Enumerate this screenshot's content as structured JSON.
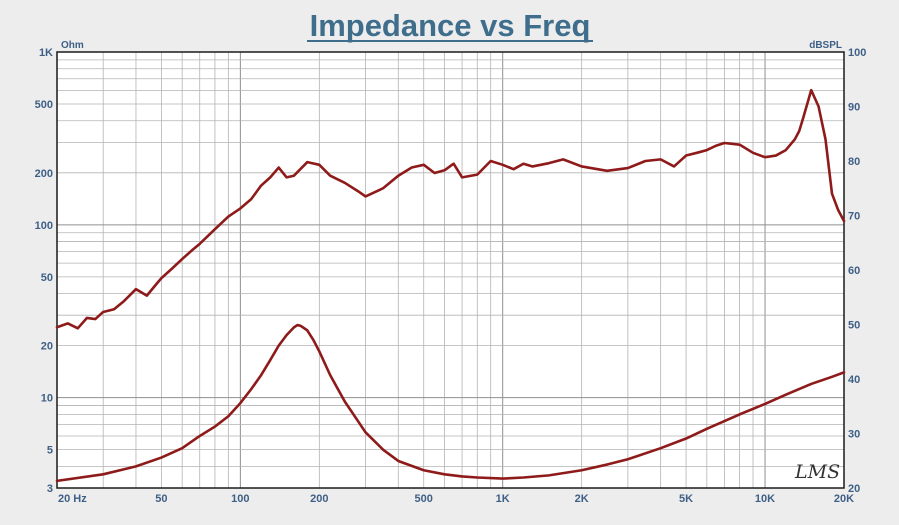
{
  "chart_data": {
    "type": "line",
    "title": "Impedance vs Freq",
    "x_scale": "log",
    "xlim": [
      20,
      20000
    ],
    "x_ticks": [
      {
        "v": 20,
        "label": "20  Hz"
      },
      {
        "v": 50,
        "label": "50"
      },
      {
        "v": 100,
        "label": "100"
      },
      {
        "v": 200,
        "label": "200"
      },
      {
        "v": 500,
        "label": "500"
      },
      {
        "v": 1000,
        "label": "1K"
      },
      {
        "v": 2000,
        "label": "2K"
      },
      {
        "v": 5000,
        "label": "5K"
      },
      {
        "v": 10000,
        "label": "10K"
      },
      {
        "v": 20000,
        "label": "20K"
      }
    ],
    "y_left": {
      "unit": "Ohm",
      "scale": "log",
      "range": [
        3,
        1000
      ],
      "ticks": [
        {
          "v": 1000,
          "label": "1K"
        },
        {
          "v": 500,
          "label": "500"
        },
        {
          "v": 200,
          "label": "200"
        },
        {
          "v": 100,
          "label": "100"
        },
        {
          "v": 50,
          "label": "50"
        },
        {
          "v": 20,
          "label": "20"
        },
        {
          "v": 10,
          "label": "10"
        },
        {
          "v": 5,
          "label": "5"
        },
        {
          "v": 3,
          "label": "3"
        }
      ]
    },
    "y_right": {
      "unit": "dBSPL",
      "scale": "linear",
      "range": [
        20,
        100
      ],
      "ticks": [
        {
          "v": 100,
          "label": "100"
        },
        {
          "v": 90,
          "label": "90"
        },
        {
          "v": 80,
          "label": "80"
        },
        {
          "v": 70,
          "label": "70"
        },
        {
          "v": 60,
          "label": "60"
        },
        {
          "v": 50,
          "label": "50"
        },
        {
          "v": 40,
          "label": "40"
        },
        {
          "v": 30,
          "label": "30"
        },
        {
          "v": 20,
          "label": "20"
        }
      ]
    },
    "grid": true,
    "line_color": "#8e1a1a",
    "series": [
      {
        "axis": "right",
        "x": [
          20,
          22,
          24,
          26,
          28,
          30,
          33,
          36,
          40,
          44,
          48,
          50,
          55,
          60,
          65,
          70,
          80,
          90,
          100,
          110,
          120,
          130,
          140,
          150,
          160,
          180,
          200,
          220,
          250,
          280,
          300,
          350,
          400,
          450,
          500,
          550,
          600,
          650,
          700,
          800,
          900,
          1000,
          1100,
          1200,
          1300,
          1500,
          1700,
          2000,
          2300,
          2500,
          3000,
          3500,
          4000,
          4500,
          5000,
          5500,
          6000,
          6500,
          7000,
          8000,
          9000,
          10000,
          11000,
          12000,
          13000,
          13500,
          14000,
          15000,
          16000,
          17000,
          18000,
          19000,
          20000
        ],
        "values": [
          49.5,
          50.2,
          49.3,
          51.2,
          51.0,
          52.3,
          52.8,
          54.3,
          56.5,
          55.3,
          57.5,
          58.5,
          60.3,
          62.0,
          63.5,
          64.8,
          67.5,
          69.8,
          71.3,
          73.0,
          75.5,
          77.0,
          78.8,
          77.0,
          77.3,
          79.8,
          79.3,
          77.3,
          76.0,
          74.5,
          73.5,
          75.0,
          77.3,
          78.8,
          79.3,
          77.8,
          78.3,
          79.5,
          77.0,
          77.5,
          80.0,
          79.3,
          78.5,
          79.5,
          79.0,
          79.6,
          80.3,
          79.0,
          78.5,
          78.2,
          78.7,
          80.0,
          80.3,
          79.0,
          81.0,
          81.5,
          82.0,
          82.8,
          83.3,
          83.0,
          81.5,
          80.7,
          81.0,
          82.0,
          84.0,
          85.5,
          88.0,
          93.0,
          90.0,
          84.0,
          74.0,
          71.0,
          69.0
        ]
      },
      {
        "axis": "left",
        "x": [
          20,
          30,
          40,
          50,
          60,
          70,
          80,
          90,
          100,
          110,
          120,
          130,
          140,
          150,
          160,
          165,
          170,
          180,
          190,
          200,
          220,
          250,
          300,
          350,
          400,
          500,
          600,
          700,
          800,
          1000,
          1200,
          1500,
          2000,
          2500,
          3000,
          4000,
          5000,
          6000,
          8000,
          10000,
          12000,
          15000,
          18000,
          20000
        ],
        "values": [
          3.3,
          3.6,
          4.0,
          4.5,
          5.1,
          6.0,
          6.8,
          7.8,
          9.3,
          11.2,
          13.5,
          16.5,
          20.0,
          23.0,
          25.5,
          26.3,
          26.0,
          24.5,
          21.5,
          18.5,
          13.5,
          9.5,
          6.3,
          5.0,
          4.3,
          3.8,
          3.6,
          3.5,
          3.45,
          3.4,
          3.45,
          3.55,
          3.8,
          4.1,
          4.4,
          5.1,
          5.8,
          6.6,
          8.0,
          9.2,
          10.4,
          12.0,
          13.2,
          14.0
        ]
      }
    ]
  },
  "watermark": "LMS"
}
